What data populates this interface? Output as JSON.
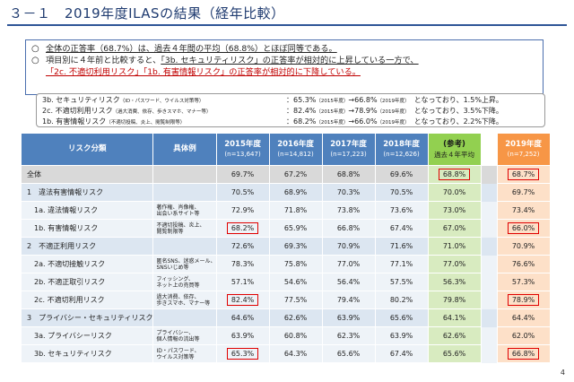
{
  "title": "３－１　2019年度ILASの結果（経年比較）",
  "summary": {
    "line1": {
      "bullet": "○",
      "u1": "全体の正答率（68.7%）は、過去４年間の平均（68.8%）とほぼ同等である。"
    },
    "line2": {
      "bullet": "○",
      "text": "項目別に４年前と比較すると、",
      "u": "「3b. セキュリティリスク」の正答率が相対的に上昇している一方で、"
    },
    "line3": {
      "red": "「2c. 不適切利用リスク」「1b. 有害情報リスク」の正答率が相対的に下降している。"
    }
  },
  "details": [
    {
      "label": "3b. セキュリティリスク",
      "label_sub": "（ID・パスワード、ウイルス対策等）",
      "value": "：65.3%",
      "value_sub1": "（2015年度）",
      "arrow": "→66.8%",
      "value_sub2": "（2019年度）",
      "tail": "となっており、1.5%上昇。"
    },
    {
      "label": "2c. 不適切利用リスク",
      "label_sub": "（過大消費、依存、歩きスマホ、マナー等）",
      "value": "：82.4%",
      "value_sub1": "（2015年度）",
      "arrow": "→78.9%",
      "value_sub2": "（2019年度）",
      "tail": "となっており、3.5%下降。"
    },
    {
      "label": "1b. 有害情報リスク",
      "label_sub": "（不適切投稿、炎上、閲覧制限等）",
      "value": "：68.2%",
      "value_sub1": "（2015年度）",
      "arrow": "→66.0%",
      "value_sub2": "（2019年度）",
      "tail": "となっており、2.2%下降。"
    }
  ],
  "table": {
    "headers": {
      "category": "リスク分類",
      "example": "具体例",
      "y2015": "2015年度",
      "n2015": "(n=13,647)",
      "y2016": "2016年度",
      "n2016": "(n=14,812)",
      "y2017": "2017年度",
      "n2017": "(n=17,223)",
      "y2018": "2018年度",
      "n2018": "(n=12,626)",
      "ref": "(参考)",
      "ref_sub": "過去４年平均",
      "y2019": "2019年度",
      "n2019": "(n=7,252)"
    },
    "rows": [
      {
        "name": "全体",
        "ex1": "",
        "ex2": "",
        "v": [
          "69.7%",
          "67.2%",
          "68.8%",
          "69.6%",
          "68.8%",
          "68.7%"
        ]
      },
      {
        "name": "1　違法有害情報リスク",
        "ex1": "",
        "ex2": "",
        "v": [
          "70.5%",
          "68.9%",
          "70.3%",
          "70.5%",
          "70.0%",
          "69.7%"
        ]
      },
      {
        "name": "1a. 違法情報リスク",
        "ex1": "著作権、肖像権、",
        "ex2": "出会い系サイト等",
        "v": [
          "72.9%",
          "71.8%",
          "73.8%",
          "73.6%",
          "73.0%",
          "73.4%"
        ]
      },
      {
        "name": "1b. 有害情報リスク",
        "ex1": "不適切投稿、炎上、",
        "ex2": "閲覧制限等",
        "v": [
          "68.2%",
          "65.9%",
          "66.8%",
          "67.4%",
          "67.0%",
          "66.0%"
        ]
      },
      {
        "name": "2　不適正利用リスク",
        "ex1": "",
        "ex2": "",
        "v": [
          "72.6%",
          "69.3%",
          "70.9%",
          "71.6%",
          "71.0%",
          "70.9%"
        ]
      },
      {
        "name": "2a. 不適切接触リスク",
        "ex1": "匿名SNS、迷惑メール、",
        "ex2": "SNSいじめ等",
        "v": [
          "78.3%",
          "75.8%",
          "77.0%",
          "77.1%",
          "77.0%",
          "76.6%"
        ]
      },
      {
        "name": "2b. 不適正取引リスク",
        "ex1": "フィッシング、",
        "ex2": "ネット上の売買等",
        "v": [
          "57.1%",
          "54.6%",
          "56.4%",
          "57.5%",
          "56.3%",
          "57.3%"
        ]
      },
      {
        "name": "2c. 不適切利用リスク",
        "ex1": "過大消費、依存、",
        "ex2": "歩きスマホ、マナー等",
        "v": [
          "82.4%",
          "77.5%",
          "79.4%",
          "80.2%",
          "79.8%",
          "78.9%"
        ]
      },
      {
        "name": "3　プライバシー・セキュリティリスク",
        "ex1": "",
        "ex2": "",
        "v": [
          "64.6%",
          "62.6%",
          "63.9%",
          "65.6%",
          "64.1%",
          "64.4%"
        ]
      },
      {
        "name": "3a. プライバシーリスク",
        "ex1": "プライバシー、",
        "ex2": "個人情報の流出等",
        "v": [
          "63.9%",
          "60.8%",
          "62.3%",
          "63.9%",
          "62.6%",
          "62.0%"
        ]
      },
      {
        "name": "3b. セキュリティリスク",
        "ex1": "ID・パスワード、",
        "ex2": "ウイルス対策等",
        "v": [
          "65.3%",
          "64.3%",
          "65.6%",
          "67.4%",
          "65.6%",
          "66.8%"
        ]
      }
    ]
  },
  "page_number": "4",
  "colors": {
    "header_blue": "#4f81bd",
    "ref_green": "#92d050",
    "y2019_orange": "#f79646",
    "highlight_red": "#e00000"
  }
}
